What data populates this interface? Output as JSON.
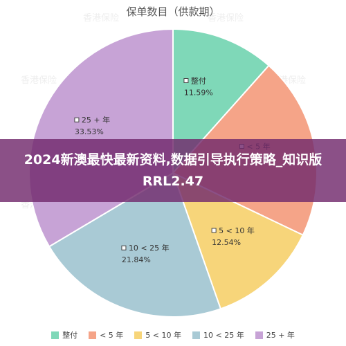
{
  "banner": {
    "text": "2024新澳最快最新资料,数据引导执行策略_知识版RRL2.47"
  },
  "watermark_text": "香港保险",
  "colors": {
    "series": [
      "#7fd8b8",
      "#f5a488",
      "#f7d57a",
      "#a9cad5",
      "#c7a3d6"
    ],
    "banner": "#722a6c"
  },
  "chart_data": {
    "type": "pie",
    "title": "保单数目（供款期）",
    "categories": [
      "整付",
      "< 5 年",
      "5 < 10 年",
      "10 < 25 年",
      "25 + 年"
    ],
    "values": [
      11.59,
      20.5,
      12.54,
      21.84,
      33.53
    ],
    "value_labels": [
      "11.59%",
      "",
      "12.54%",
      "21.84%",
      "33.53%"
    ],
    "start_angle_deg": 0,
    "direction": "clockwise",
    "legend_position": "bottom"
  }
}
